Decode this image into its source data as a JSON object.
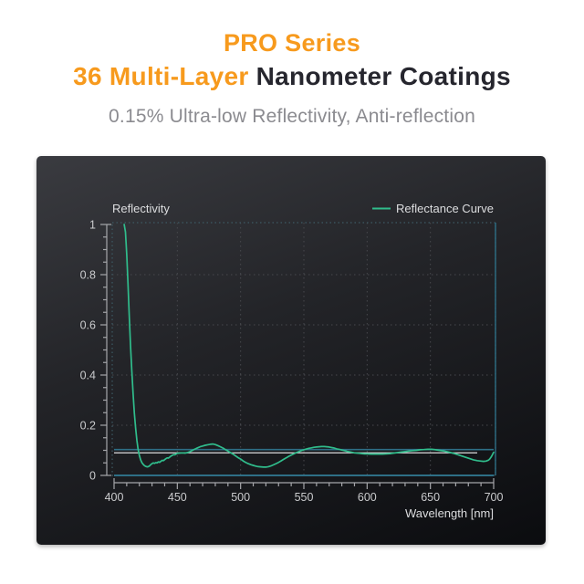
{
  "header": {
    "line1": "PRO Series",
    "line2_orange": "36 Multi-Layer",
    "line2_dark": " Nanometer Coatings",
    "subtitle": "0.15% Ultra-low Reflectivity, Anti-reflection"
  },
  "colors": {
    "accent_orange": "#f79a1d",
    "title_dark": "#26262e",
    "subtitle_gray": "#8b8b90",
    "card_top": "#3a3b40",
    "card_bottom": "#0b0c0f",
    "curve_green": "#30bd8c",
    "frame_dotted": "#3d5a64",
    "frame_solid": "#2e6f86",
    "ref_white": "#dcdcde",
    "grid": "#47484d",
    "axis": "#a5a6aa",
    "tick_text": "#cbccce",
    "label_text": "#dcdddf"
  },
  "chart_data": {
    "type": "line",
    "title": "",
    "ylabel": "Reflectivity",
    "xlabel": "Wavelength [nm]",
    "legend": [
      "Reflectance Curve"
    ],
    "legend_position": "top-right",
    "grid": true,
    "xlim": [
      400,
      700
    ],
    "ylim": [
      0,
      1
    ],
    "xticks": [
      400,
      450,
      500,
      550,
      600,
      650,
      700
    ],
    "xminor_step": 10,
    "yticks": [
      0,
      0.2,
      0.4,
      0.6,
      0.8,
      1
    ],
    "yminor_step": 0.05,
    "ref_lines": [
      {
        "name": "reference-line-teal",
        "value": 0.103,
        "from": 400,
        "to": 700,
        "color": "#2e6f86",
        "width": 1.6
      },
      {
        "name": "average-line-white",
        "value": 0.09,
        "from": 400,
        "to": 687,
        "color": "#dcdcde",
        "width": 1.2
      },
      {
        "name": "zero-baseline",
        "value": 0.0,
        "from": 400,
        "to": 700,
        "color": "#2e6f86",
        "width": 2.0
      }
    ],
    "series": [
      {
        "name": "Reflectance Curve",
        "color": "#30bd8c",
        "points": [
          [
            408,
            1.0
          ],
          [
            409,
            0.97
          ],
          [
            410,
            0.88
          ],
          [
            411,
            0.76
          ],
          [
            412,
            0.64
          ],
          [
            413,
            0.52
          ],
          [
            414,
            0.42
          ],
          [
            415,
            0.33
          ],
          [
            416,
            0.25
          ],
          [
            417,
            0.19
          ],
          [
            418,
            0.14
          ],
          [
            419,
            0.105
          ],
          [
            420,
            0.08
          ],
          [
            421,
            0.062
          ],
          [
            422,
            0.051
          ],
          [
            423,
            0.044
          ],
          [
            424,
            0.039
          ],
          [
            425,
            0.036
          ],
          [
            426,
            0.034
          ],
          [
            427,
            0.035
          ],
          [
            428,
            0.038
          ],
          [
            429,
            0.043
          ],
          [
            430,
            0.047
          ],
          [
            431,
            0.05
          ],
          [
            432,
            0.048
          ],
          [
            433,
            0.051
          ],
          [
            434,
            0.05
          ],
          [
            435,
            0.054
          ],
          [
            436,
            0.052
          ],
          [
            437,
            0.056
          ],
          [
            438,
            0.06
          ],
          [
            439,
            0.059
          ],
          [
            440,
            0.063
          ],
          [
            441,
            0.067
          ],
          [
            442,
            0.07
          ],
          [
            443,
            0.069
          ],
          [
            444,
            0.073
          ],
          [
            445,
            0.077
          ],
          [
            446,
            0.08
          ],
          [
            447,
            0.083
          ],
          [
            448,
            0.082
          ],
          [
            449,
            0.085
          ],
          [
            450,
            0.088
          ],
          [
            452,
            0.089
          ],
          [
            454,
            0.09
          ],
          [
            456,
            0.089
          ],
          [
            458,
            0.091
          ],
          [
            460,
            0.095
          ],
          [
            462,
            0.1
          ],
          [
            464,
            0.105
          ],
          [
            466,
            0.11
          ],
          [
            468,
            0.114
          ],
          [
            470,
            0.117
          ],
          [
            472,
            0.12
          ],
          [
            474,
            0.122
          ],
          [
            476,
            0.124
          ],
          [
            478,
            0.125
          ],
          [
            480,
            0.123
          ],
          [
            482,
            0.119
          ],
          [
            484,
            0.114
          ],
          [
            486,
            0.109
          ],
          [
            488,
            0.103
          ],
          [
            490,
            0.097
          ],
          [
            492,
            0.091
          ],
          [
            494,
            0.085
          ],
          [
            496,
            0.078
          ],
          [
            498,
            0.071
          ],
          [
            500,
            0.065
          ],
          [
            502,
            0.058
          ],
          [
            504,
            0.052
          ],
          [
            506,
            0.047
          ],
          [
            508,
            0.043
          ],
          [
            510,
            0.04
          ],
          [
            512,
            0.037
          ],
          [
            514,
            0.035
          ],
          [
            516,
            0.034
          ],
          [
            518,
            0.033
          ],
          [
            520,
            0.033
          ],
          [
            522,
            0.035
          ],
          [
            524,
            0.038
          ],
          [
            526,
            0.042
          ],
          [
            528,
            0.047
          ],
          [
            530,
            0.052
          ],
          [
            532,
            0.058
          ],
          [
            534,
            0.064
          ],
          [
            536,
            0.07
          ],
          [
            538,
            0.076
          ],
          [
            540,
            0.081
          ],
          [
            542,
            0.086
          ],
          [
            544,
            0.091
          ],
          [
            546,
            0.095
          ],
          [
            548,
            0.099
          ],
          [
            550,
            0.102
          ],
          [
            552,
            0.105
          ],
          [
            554,
            0.108
          ],
          [
            556,
            0.11
          ],
          [
            558,
            0.112
          ],
          [
            560,
            0.113
          ],
          [
            562,
            0.114
          ],
          [
            564,
            0.115
          ],
          [
            566,
            0.115
          ],
          [
            568,
            0.114
          ],
          [
            570,
            0.113
          ],
          [
            572,
            0.111
          ],
          [
            574,
            0.109
          ],
          [
            576,
            0.106
          ],
          [
            578,
            0.104
          ],
          [
            580,
            0.101
          ],
          [
            582,
            0.099
          ],
          [
            584,
            0.096
          ],
          [
            586,
            0.094
          ],
          [
            588,
            0.092
          ],
          [
            590,
            0.09
          ],
          [
            592,
            0.089
          ],
          [
            594,
            0.088
          ],
          [
            596,
            0.087
          ],
          [
            598,
            0.086
          ],
          [
            600,
            0.086
          ],
          [
            603,
            0.085
          ],
          [
            606,
            0.085
          ],
          [
            609,
            0.085
          ],
          [
            612,
            0.085
          ],
          [
            615,
            0.086
          ],
          [
            618,
            0.087
          ],
          [
            621,
            0.089
          ],
          [
            624,
            0.091
          ],
          [
            627,
            0.093
          ],
          [
            630,
            0.095
          ],
          [
            633,
            0.097
          ],
          [
            636,
            0.099
          ],
          [
            639,
            0.1
          ],
          [
            642,
            0.102
          ],
          [
            645,
            0.103
          ],
          [
            648,
            0.104
          ],
          [
            651,
            0.104
          ],
          [
            654,
            0.102
          ],
          [
            657,
            0.1
          ],
          [
            660,
            0.098
          ],
          [
            663,
            0.095
          ],
          [
            666,
            0.091
          ],
          [
            669,
            0.087
          ],
          [
            672,
            0.082
          ],
          [
            675,
            0.077
          ],
          [
            678,
            0.072
          ],
          [
            681,
            0.067
          ],
          [
            684,
            0.062
          ],
          [
            687,
            0.059
          ],
          [
            690,
            0.057
          ],
          [
            692,
            0.056
          ],
          [
            694,
            0.057
          ],
          [
            696,
            0.061
          ],
          [
            697,
            0.066
          ],
          [
            698,
            0.073
          ],
          [
            699,
            0.082
          ],
          [
            700,
            0.092
          ]
        ]
      }
    ]
  }
}
